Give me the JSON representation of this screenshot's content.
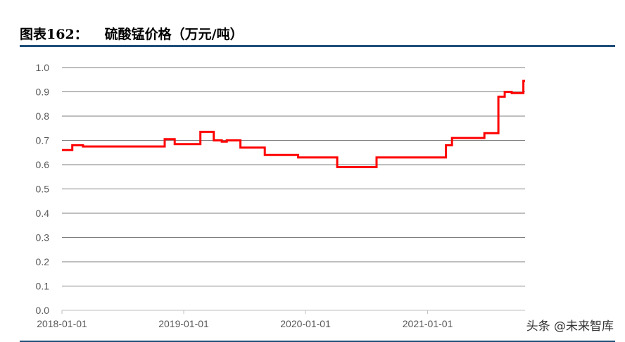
{
  "header": {
    "figure_number": "图表162：",
    "title": "硫酸锰价格（万元/吨）"
  },
  "watermark": "头条 @未来智库",
  "colors": {
    "line": "#ff0000",
    "rule": "#1f4e79",
    "grid": "#7f7f7f",
    "axis_text": "#595959"
  },
  "chart_data": {
    "type": "line",
    "title": "硫酸锰价格（万元/吨）",
    "xlabel": "",
    "ylabel": "",
    "ylim": [
      0,
      1.0
    ],
    "yticks": [
      "0.0",
      "0.1",
      "0.2",
      "0.3",
      "0.4",
      "0.5",
      "0.6",
      "0.7",
      "0.8",
      "0.9",
      "1.0"
    ],
    "xlim": [
      "2018-01-01",
      "2021-10-20"
    ],
    "xticks": [
      "2018-01-01",
      "2019-01-01",
      "2020-01-01",
      "2021-01-01"
    ],
    "grid": "horizontal",
    "legend": "none",
    "step": true,
    "series": [
      {
        "color": "#ff0000",
        "points": [
          [
            "2018-01-01",
            0.66
          ],
          [
            "2018-02-01",
            0.68
          ],
          [
            "2018-03-05",
            0.675
          ],
          [
            "2018-11-05",
            0.705
          ],
          [
            "2018-12-05",
            0.685
          ],
          [
            "2019-02-20",
            0.735
          ],
          [
            "2019-04-01",
            0.7
          ],
          [
            "2019-04-25",
            0.695
          ],
          [
            "2019-05-10",
            0.7
          ],
          [
            "2019-06-20",
            0.67
          ],
          [
            "2019-09-01",
            0.64
          ],
          [
            "2019-12-10",
            0.63
          ],
          [
            "2020-04-05",
            0.59
          ],
          [
            "2020-08-01",
            0.63
          ],
          [
            "2021-02-25",
            0.68
          ],
          [
            "2021-03-15",
            0.71
          ],
          [
            "2021-06-20",
            0.73
          ],
          [
            "2021-08-01",
            0.88
          ],
          [
            "2021-08-20",
            0.9
          ],
          [
            "2021-09-10",
            0.895
          ],
          [
            "2021-10-15",
            0.945
          ],
          [
            "2021-10-20",
            0.945
          ]
        ]
      }
    ]
  }
}
